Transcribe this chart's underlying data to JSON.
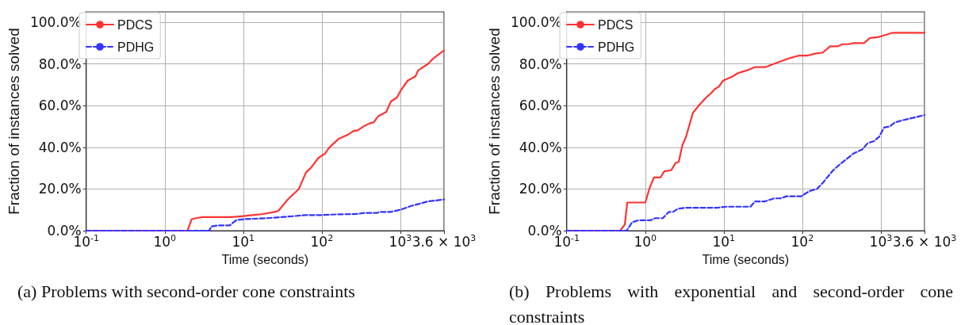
{
  "chart_data": [
    {
      "type": "line",
      "title": "(a) Problems with second-order cone constraints",
      "xlabel": "Time (seconds)",
      "ylabel": "Fraction of instances solved",
      "log": "x",
      "grid": true,
      "legend": "top left",
      "xlim": [
        0.1,
        3600
      ],
      "xticks": [
        {
          "value": 0.1,
          "label": "10$^{-1}$"
        },
        {
          "value": 1,
          "label": "10$^{0}$"
        },
        {
          "value": 10,
          "label": "10$^{1}$"
        },
        {
          "value": 100,
          "label": "10$^{2}$"
        },
        {
          "value": 1000,
          "label": "10$^{3}$"
        },
        {
          "value": 3600,
          "label": "3.6 × 10$^{3}$"
        }
      ],
      "ylim": [
        0,
        105
      ],
      "yticks": [
        {
          "value": 0,
          "label": "0.0%"
        },
        {
          "value": 20,
          "label": "20.0%"
        },
        {
          "value": 40,
          "label": "40.0%"
        },
        {
          "value": 60,
          "label": "60.0%"
        },
        {
          "value": 80,
          "label": "80.0%"
        },
        {
          "value": 100,
          "label": "100.0%"
        }
      ],
      "series": [
        {
          "name": "PDCS",
          "color": "#ff3333",
          "line_style": "solid",
          "x": [
            0.1,
            1.95,
            2.2,
            2.5,
            3,
            7.2,
            10,
            13,
            18,
            25,
            28,
            37,
            51,
            63,
            72,
            91,
            110,
            125,
            163,
            214,
            257,
            282,
            339,
            407,
            457,
            525,
            660,
            760,
            910,
            1000,
            1240,
            1550,
            1700,
            2240,
            2700,
            3600
          ],
          "values": [
            0,
            0,
            5.5,
            6,
            6.5,
            6.5,
            7,
            7.5,
            8,
            9,
            9.5,
            15,
            20,
            28,
            30,
            35,
            37,
            40,
            44,
            46,
            48,
            48,
            50,
            51.5,
            52,
            55,
            57,
            62,
            64,
            67,
            72,
            74,
            77,
            80,
            83,
            86.5
          ]
        },
        {
          "name": "PDHG",
          "color": "#3333ff",
          "line_style": "dashed",
          "x": [
            0.1,
            3.7,
            3.9,
            4.7,
            6.7,
            8.1,
            10,
            20,
            30,
            45,
            60,
            100,
            150,
            280,
            350,
            500,
            550,
            750,
            1000,
            1400,
            1800,
            2200,
            3600
          ],
          "values": [
            0,
            0,
            2,
            2.5,
            2.5,
            5,
            5.5,
            6,
            6.5,
            7,
            7.5,
            7.5,
            7.8,
            8,
            8.5,
            8.5,
            9,
            9,
            10,
            12,
            13,
            14,
            15
          ]
        }
      ]
    },
    {
      "type": "line",
      "title": "(b) Problems with exponential and second-order cone constraints",
      "xlabel": "Time (seconds)",
      "ylabel": "Fraction of instances solved",
      "log": "x",
      "grid": true,
      "legend": "top left",
      "xlim": [
        0.1,
        3600
      ],
      "xticks": [
        {
          "value": 0.1,
          "label": "10$^{-1}$"
        },
        {
          "value": 1,
          "label": "10$^{0}$"
        },
        {
          "value": 10,
          "label": "10$^{1}$"
        },
        {
          "value": 100,
          "label": "10$^{2}$"
        },
        {
          "value": 1000,
          "label": "10$^{3}$"
        },
        {
          "value": 3600,
          "label": "3.6 × 10$^{3}$"
        }
      ],
      "ylim": [
        0,
        105
      ],
      "yticks": [
        {
          "value": 0,
          "label": "0.0%"
        },
        {
          "value": 20,
          "label": "20.0%"
        },
        {
          "value": 40,
          "label": "40.0%"
        },
        {
          "value": 60,
          "label": "60.0%"
        },
        {
          "value": 80,
          "label": "80.0%"
        },
        {
          "value": 100,
          "label": "100.0%"
        }
      ],
      "series": [
        {
          "name": "PDCS",
          "color": "#ff3333",
          "line_style": "solid",
          "x": [
            0.1,
            0.48,
            0.55,
            0.59,
            1.0,
            1.15,
            1.29,
            1.56,
            1.75,
            2.14,
            2.44,
            2.67,
            2.97,
            3.3,
            4.04,
            4.8,
            6.0,
            6.9,
            7.7,
            8.6,
            9.8,
            12.9,
            15,
            18,
            20,
            25,
            34,
            43,
            51,
            60,
            72,
            90,
            116,
            146,
            183,
            226,
            285,
            325,
            390,
            447,
            610,
            730,
            950,
            1420,
            3600
          ],
          "values": [
            0,
            0,
            3,
            13.5,
            13.5,
            21,
            25.5,
            25.5,
            28.5,
            29,
            32.5,
            33,
            41,
            45,
            56.5,
            60,
            64,
            66,
            68,
            69,
            72,
            74,
            75.5,
            76.5,
            77,
            78.5,
            78.5,
            80,
            81,
            82,
            83,
            84,
            84,
            85,
            85.5,
            88.5,
            88.5,
            89.5,
            89.5,
            90,
            90,
            92.5,
            93,
            95,
            95
          ]
        },
        {
          "name": "PDHG",
          "color": "#3333ff",
          "line_style": "dashed",
          "x": [
            0.1,
            0.58,
            0.68,
            0.82,
            1.17,
            1.34,
            1.67,
            2.0,
            2.26,
            2.6,
            3.3,
            4.8,
            8.2,
            10.7,
            21.8,
            25,
            33,
            44,
            53,
            63,
            97,
            123,
            153,
            183,
            247,
            305,
            447,
            580,
            680,
            820,
            950,
            1100,
            1290,
            1520,
            1900,
            3200,
            3600
          ],
          "values": [
            0,
            0,
            4,
            5,
            5,
            6,
            6,
            9,
            9,
            10.5,
            11,
            11,
            11,
            11.5,
            11.5,
            14,
            14,
            15.5,
            15.5,
            16.5,
            16.5,
            19,
            20,
            23,
            29,
            32,
            37,
            39,
            42,
            43,
            45,
            49.5,
            50,
            52,
            53,
            55,
            55.5
          ]
        }
      ]
    }
  ]
}
